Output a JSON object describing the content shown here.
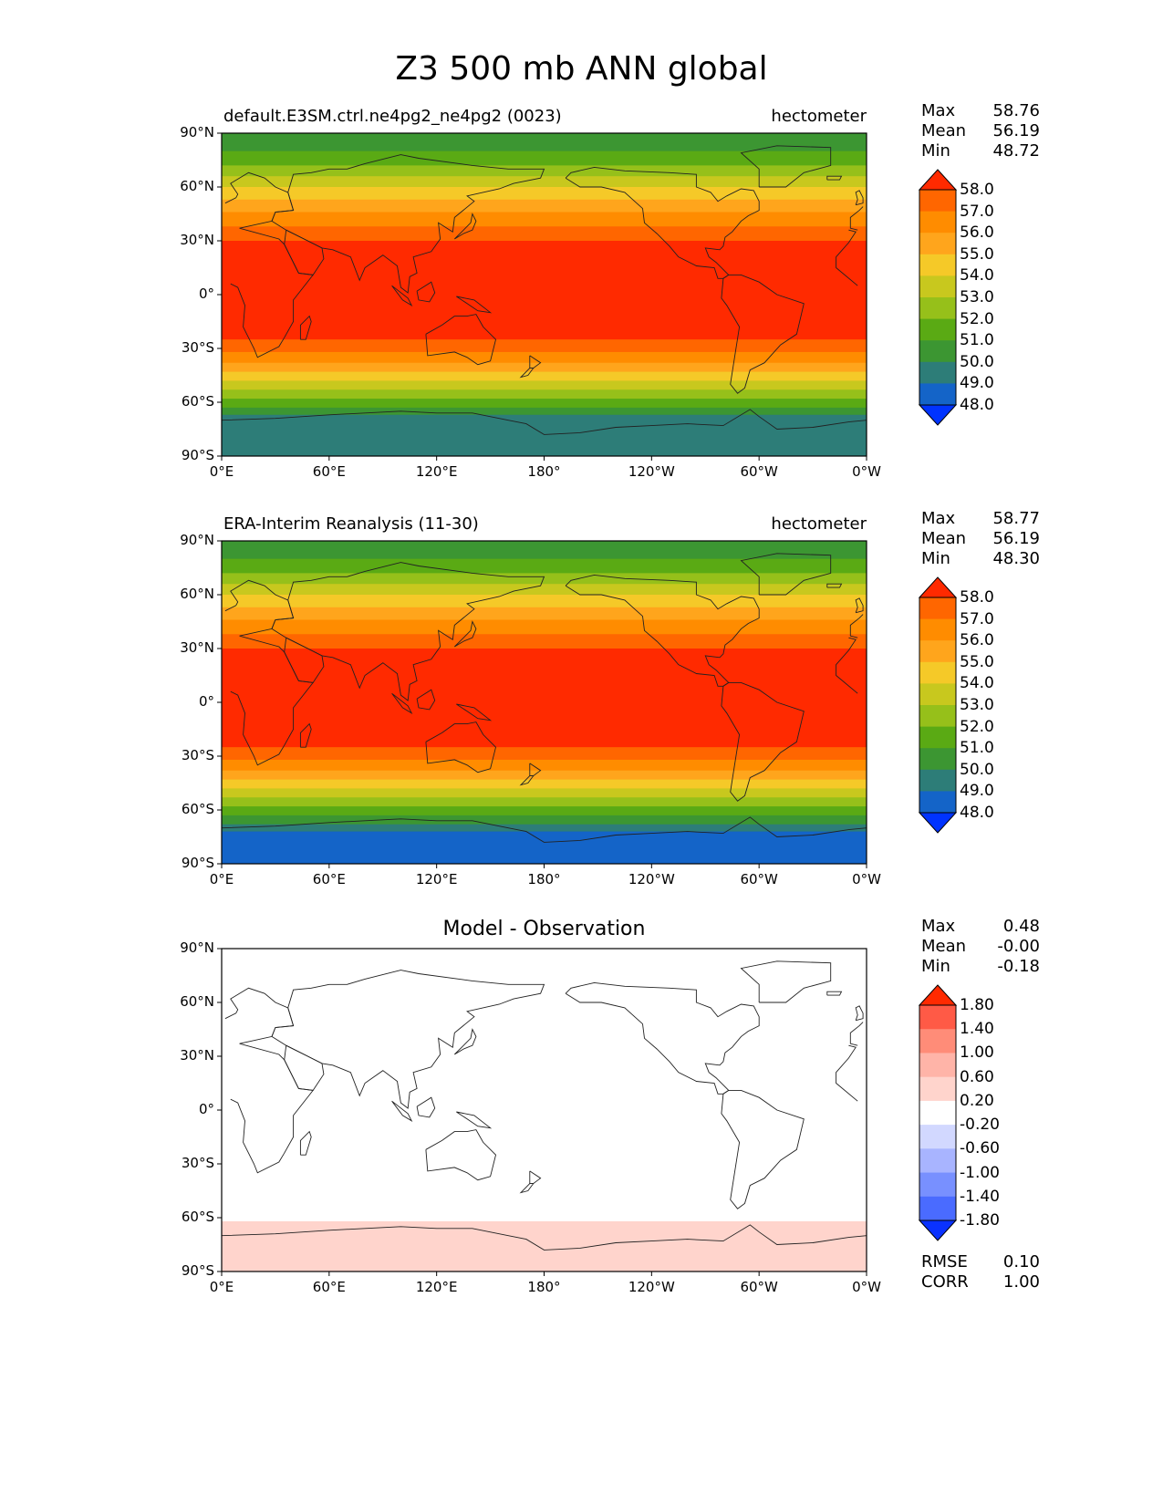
{
  "figure": {
    "title": "Z3 500 mb ANN global"
  },
  "panels": [
    {
      "id": "test",
      "title_left": "default.E3SM.ctrl.ne4pg2_ne4pg2 (0023)",
      "title_right": "hectometer",
      "title_center": "",
      "stats": [
        {
          "label": "Max",
          "value": "58.76"
        },
        {
          "label": "Mean",
          "value": "56.19"
        },
        {
          "label": "Min",
          "value": "48.72"
        }
      ]
    },
    {
      "id": "reference",
      "title_left": "ERA-Interim Reanalysis (11-30)",
      "title_right": "hectometer",
      "title_center": "",
      "stats": [
        {
          "label": "Max",
          "value": "58.77"
        },
        {
          "label": "Mean",
          "value": "56.19"
        },
        {
          "label": "Min",
          "value": "48.30"
        }
      ]
    },
    {
      "id": "difference",
      "title_left": "",
      "title_right": "",
      "title_center": "Model - Observation",
      "stats": [
        {
          "label": "Max",
          "value": "0.48"
        },
        {
          "label": "Mean",
          "value": "-0.00"
        },
        {
          "label": "Min",
          "value": "-0.18"
        }
      ],
      "extra_stats": [
        {
          "label": "RMSE",
          "value": "0.10"
        },
        {
          "label": "CORR",
          "value": "1.00"
        }
      ]
    }
  ],
  "axes": {
    "y_ticks": [
      "90°N",
      "60°N",
      "30°N",
      "0°",
      "30°S",
      "60°S",
      "90°S"
    ],
    "x_ticks": [
      "0°E",
      "60°E",
      "120°E",
      "180°",
      "120°W",
      "60°W",
      "0°W"
    ]
  },
  "colorbars": {
    "field": {
      "labels": [
        "58.0",
        "57.0",
        "56.0",
        "55.0",
        "54.0",
        "53.0",
        "52.0",
        "51.0",
        "50.0",
        "49.0",
        "48.0"
      ],
      "colors": [
        "#ff2a00",
        "#ff6600",
        "#ff8c00",
        "#ffa51c",
        "#f5c928",
        "#c8c81e",
        "#96c01a",
        "#5aaa14",
        "#3c9632",
        "#2d7d78",
        "#1464c8",
        "#0033ff"
      ]
    },
    "diff": {
      "labels": [
        "1.80",
        "1.40",
        "1.00",
        "0.60",
        "0.20",
        "-0.20",
        "-0.60",
        "-1.00",
        "-1.40",
        "-1.80"
      ],
      "colors": [
        "#ff2a00",
        "#ff5a46",
        "#ff8c78",
        "#ffb4a8",
        "#ffd4cc",
        "#ffffff",
        "#d2d8ff",
        "#a8b4ff",
        "#7890ff",
        "#4a6bff",
        "#0a32ff"
      ]
    }
  },
  "chart_data": [
    {
      "type": "heatmap",
      "title": "default.E3SM.ctrl.ne4pg2_ne4pg2 (0023)",
      "units": "hectometer",
      "xlim": [
        0,
        360
      ],
      "ylim": [
        -90,
        90
      ],
      "lat_bands": [
        {
          "lat_from": 90,
          "lat_to": 80,
          "value": 50.5
        },
        {
          "lat_from": 80,
          "lat_to": 72,
          "value": 51.5
        },
        {
          "lat_from": 72,
          "lat_to": 66,
          "value": 52.5
        },
        {
          "lat_from": 66,
          "lat_to": 60,
          "value": 53.5
        },
        {
          "lat_from": 60,
          "lat_to": 53,
          "value": 54.5
        },
        {
          "lat_from": 53,
          "lat_to": 46,
          "value": 55.5
        },
        {
          "lat_from": 46,
          "lat_to": 38,
          "value": 56.5
        },
        {
          "lat_from": 38,
          "lat_to": 30,
          "value": 57.5
        },
        {
          "lat_from": 30,
          "lat_to": -25,
          "value": 58.3
        },
        {
          "lat_from": -25,
          "lat_to": -32,
          "value": 57.5
        },
        {
          "lat_from": -32,
          "lat_to": -38,
          "value": 56.5
        },
        {
          "lat_from": -38,
          "lat_to": -43,
          "value": 55.5
        },
        {
          "lat_from": -43,
          "lat_to": -48,
          "value": 54.5
        },
        {
          "lat_from": -48,
          "lat_to": -53,
          "value": 53.5
        },
        {
          "lat_from": -53,
          "lat_to": -58,
          "value": 52.5
        },
        {
          "lat_from": -58,
          "lat_to": -63,
          "value": 51.5
        },
        {
          "lat_from": -63,
          "lat_to": -67,
          "value": 50.5
        },
        {
          "lat_from": -67,
          "lat_to": -90,
          "value": 49.5
        }
      ]
    },
    {
      "type": "heatmap",
      "title": "ERA-Interim Reanalysis (11-30)",
      "units": "hectometer",
      "xlim": [
        0,
        360
      ],
      "ylim": [
        -90,
        90
      ],
      "lat_bands": [
        {
          "lat_from": 90,
          "lat_to": 80,
          "value": 50.5
        },
        {
          "lat_from": 80,
          "lat_to": 72,
          "value": 51.5
        },
        {
          "lat_from": 72,
          "lat_to": 66,
          "value": 52.5
        },
        {
          "lat_from": 66,
          "lat_to": 60,
          "value": 53.5
        },
        {
          "lat_from": 60,
          "lat_to": 53,
          "value": 54.5
        },
        {
          "lat_from": 53,
          "lat_to": 46,
          "value": 55.5
        },
        {
          "lat_from": 46,
          "lat_to": 38,
          "value": 56.5
        },
        {
          "lat_from": 38,
          "lat_to": 30,
          "value": 57.5
        },
        {
          "lat_from": 30,
          "lat_to": -25,
          "value": 58.3
        },
        {
          "lat_from": -25,
          "lat_to": -32,
          "value": 57.5
        },
        {
          "lat_from": -32,
          "lat_to": -38,
          "value": 56.5
        },
        {
          "lat_from": -38,
          "lat_to": -43,
          "value": 55.5
        },
        {
          "lat_from": -43,
          "lat_to": -48,
          "value": 54.5
        },
        {
          "lat_from": -48,
          "lat_to": -53,
          "value": 53.5
        },
        {
          "lat_from": -53,
          "lat_to": -58,
          "value": 52.5
        },
        {
          "lat_from": -58,
          "lat_to": -63,
          "value": 51.5
        },
        {
          "lat_from": -63,
          "lat_to": -68,
          "value": 50.5
        },
        {
          "lat_from": -68,
          "lat_to": -72,
          "value": 49.5
        },
        {
          "lat_from": -72,
          "lat_to": -90,
          "value": 48.5
        }
      ]
    },
    {
      "type": "heatmap",
      "title": "Model - Observation",
      "xlim": [
        0,
        360
      ],
      "ylim": [
        -90,
        90
      ],
      "lat_bands": [
        {
          "lat_from": 90,
          "lat_to": -62,
          "value": 0.0
        },
        {
          "lat_from": -62,
          "lat_to": -90,
          "value": 0.4
        }
      ]
    }
  ]
}
